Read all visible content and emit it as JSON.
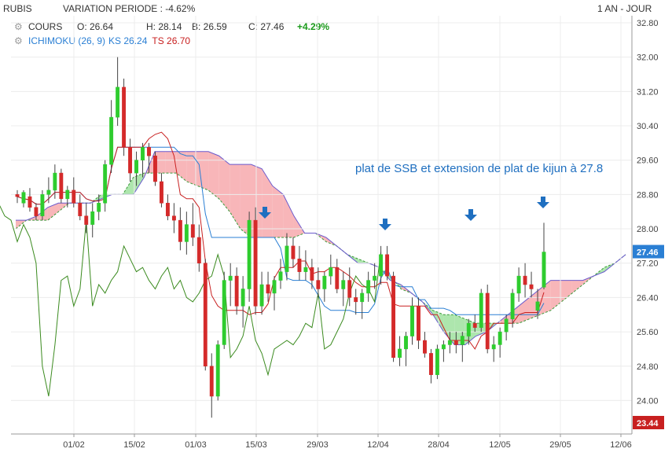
{
  "header": {
    "symbol": "RUBIS",
    "variation": "VARIATION PERIODE : -4.62%",
    "period": "1 AN - JOUR"
  },
  "legend": {
    "cours_label": "COURS",
    "open": "O: 26.64",
    "high": "H: 28.14",
    "low": "B: 26.59",
    "close": "C: 27.46",
    "change": "+4.29%",
    "ichimoku_label": "ICHIMOKU (26, 9)",
    "ks": "KS 26.24",
    "ts": "TS 26.70"
  },
  "annotation": "plat de SSB et extension de plat de kijun à 27.8",
  "badges": {
    "last": "27.46",
    "min": "23.44"
  },
  "colors": {
    "up": "#2ecc2e",
    "down": "#d42a2a",
    "kijun": "#2a7fd4",
    "tenkan": "#c82020",
    "chikou": "#3a8a1e",
    "cloud_bull": "#9fe29f",
    "cloud_bear": "#f7a9ad",
    "badge_last": "#2a7fd4",
    "badge_min": "#c82020",
    "annotation": "#1f6fc0"
  },
  "chart_data": {
    "type": "candlestick",
    "y_ticks": [
      "32.80",
      "32.00",
      "31.20",
      "30.40",
      "29.60",
      "28.80",
      "28.00",
      "27.20",
      "26.40",
      "25.60",
      "24.80",
      "24.00"
    ],
    "ylim": [
      23.44,
      32.8
    ],
    "x_ticks": [
      "01/02",
      "15/02",
      "01/03",
      "15/03",
      "29/03",
      "12/04",
      "28/04",
      "12/05",
      "29/05",
      "12/06"
    ],
    "candles": [
      [
        28.8,
        28.9,
        28.6,
        28.75
      ],
      [
        28.6,
        28.9,
        28.5,
        28.85
      ],
      [
        28.75,
        28.95,
        28.4,
        28.5
      ],
      [
        28.5,
        28.6,
        28.2,
        28.3
      ],
      [
        28.3,
        28.9,
        28.2,
        28.8
      ],
      [
        28.8,
        29.2,
        28.6,
        28.9
      ],
      [
        28.9,
        29.5,
        28.7,
        29.3
      ],
      [
        29.3,
        29.4,
        28.6,
        28.7
      ],
      [
        28.7,
        29.0,
        28.5,
        28.9
      ],
      [
        28.9,
        29.2,
        28.5,
        28.6
      ],
      [
        28.6,
        28.8,
        28.2,
        28.3
      ],
      [
        28.3,
        28.6,
        27.9,
        28.1
      ],
      [
        28.1,
        28.6,
        27.8,
        28.4
      ],
      [
        28.4,
        28.8,
        28.2,
        28.6
      ],
      [
        28.6,
        29.6,
        28.4,
        29.5
      ],
      [
        29.5,
        31.0,
        29.3,
        30.6
      ],
      [
        30.6,
        32.0,
        30.4,
        31.3
      ],
      [
        31.3,
        31.5,
        29.7,
        29.9
      ],
      [
        29.9,
        30.1,
        29.1,
        29.3
      ],
      [
        29.3,
        29.8,
        29.0,
        29.6
      ],
      [
        29.6,
        30.0,
        29.2,
        29.9
      ],
      [
        29.9,
        30.0,
        29.3,
        29.7
      ],
      [
        29.7,
        29.8,
        29.0,
        29.1
      ],
      [
        29.1,
        29.3,
        28.5,
        28.6
      ],
      [
        28.6,
        28.8,
        28.2,
        28.3
      ],
      [
        28.3,
        28.6,
        27.9,
        28.2
      ],
      [
        28.2,
        28.5,
        27.5,
        27.7
      ],
      [
        27.7,
        28.4,
        27.4,
        28.1
      ],
      [
        28.1,
        28.6,
        27.6,
        27.8
      ],
      [
        27.8,
        28.1,
        27.0,
        27.2
      ],
      [
        27.2,
        27.3,
        24.7,
        24.8
      ],
      [
        24.8,
        25.1,
        23.6,
        24.1
      ],
      [
        24.1,
        25.4,
        24.0,
        25.3
      ],
      [
        25.3,
        27.0,
        25.2,
        26.8
      ],
      [
        26.8,
        27.2,
        26.2,
        26.9
      ],
      [
        26.9,
        27.1,
        26.0,
        26.2
      ],
      [
        26.2,
        26.9,
        25.7,
        26.6
      ],
      [
        26.6,
        28.4,
        26.3,
        28.2
      ],
      [
        28.2,
        28.5,
        26.0,
        26.2
      ],
      [
        26.2,
        27.0,
        26.0,
        26.7
      ],
      [
        26.7,
        27.0,
        26.3,
        26.5
      ],
      [
        26.5,
        26.9,
        26.1,
        26.8
      ],
      [
        26.8,
        27.3,
        26.6,
        27.0
      ],
      [
        27.0,
        27.9,
        26.8,
        27.6
      ],
      [
        27.6,
        27.8,
        27.1,
        27.3
      ],
      [
        27.3,
        27.6,
        26.8,
        27.0
      ],
      [
        27.0,
        27.5,
        26.8,
        27.1
      ],
      [
        27.1,
        27.3,
        26.6,
        26.8
      ],
      [
        26.8,
        27.1,
        26.4,
        26.6
      ],
      [
        26.6,
        27.0,
        26.3,
        26.9
      ],
      [
        26.9,
        27.4,
        26.7,
        27.1
      ],
      [
        27.1,
        27.3,
        26.5,
        26.6
      ],
      [
        26.6,
        27.0,
        26.2,
        26.8
      ],
      [
        26.8,
        27.1,
        26.2,
        26.4
      ],
      [
        26.4,
        26.6,
        26.0,
        26.3
      ],
      [
        26.3,
        26.6,
        25.9,
        26.5
      ],
      [
        26.5,
        27.0,
        26.3,
        26.8
      ],
      [
        26.8,
        27.2,
        26.6,
        26.9
      ],
      [
        26.9,
        27.6,
        26.7,
        27.4
      ],
      [
        27.4,
        27.6,
        26.8,
        26.9
      ],
      [
        26.9,
        27.0,
        24.9,
        25.0
      ],
      [
        25.0,
        25.5,
        24.8,
        25.2
      ],
      [
        25.2,
        25.6,
        24.8,
        25.5
      ],
      [
        25.5,
        26.4,
        25.3,
        26.2
      ],
      [
        26.2,
        26.4,
        25.2,
        25.4
      ],
      [
        25.4,
        25.6,
        25.0,
        25.1
      ],
      [
        25.1,
        25.2,
        24.4,
        24.6
      ],
      [
        24.6,
        25.3,
        24.5,
        25.2
      ],
      [
        25.2,
        25.4,
        24.9,
        25.3
      ],
      [
        25.3,
        25.6,
        25.1,
        25.4
      ],
      [
        25.4,
        25.6,
        25.1,
        25.3
      ],
      [
        25.3,
        25.6,
        24.9,
        25.5
      ],
      [
        25.5,
        25.9,
        25.3,
        25.8
      ],
      [
        25.8,
        26.0,
        25.6,
        25.7
      ],
      [
        25.7,
        26.6,
        25.6,
        26.5
      ],
      [
        26.5,
        26.7,
        25.1,
        25.2
      ],
      [
        25.2,
        25.5,
        24.9,
        25.3
      ],
      [
        25.3,
        25.7,
        25.0,
        25.6
      ],
      [
        25.6,
        26.0,
        25.4,
        25.9
      ],
      [
        25.9,
        26.6,
        25.7,
        26.5
      ],
      [
        26.5,
        27.1,
        26.3,
        26.9
      ],
      [
        26.9,
        27.2,
        26.4,
        26.7
      ],
      [
        26.7,
        27.0,
        26.4,
        26.6
      ],
      [
        26.1,
        26.6,
        25.9,
        26.3
      ],
      [
        26.64,
        28.14,
        26.59,
        27.46
      ]
    ],
    "kijun": [
      [
        28.0,
        28.2
      ],
      [
        28.2,
        28.2
      ],
      [
        28.2,
        28.3
      ],
      [
        28.2,
        28.5
      ],
      [
        28.4,
        28.6
      ],
      [
        28.6,
        28.6
      ],
      [
        28.6,
        28.6
      ],
      [
        28.6,
        28.6
      ],
      [
        28.8,
        28.7
      ],
      [
        28.8,
        28.8
      ],
      [
        28.8,
        28.8
      ],
      [
        29.2,
        28.8
      ],
      [
        29.3,
        29.2
      ],
      [
        29.3,
        29.8
      ],
      [
        29.3,
        29.8
      ],
      [
        29.3,
        29.8
      ],
      [
        29.1,
        29.8
      ],
      [
        29.0,
        29.8
      ],
      [
        28.9,
        29.8
      ],
      [
        28.7,
        29.7
      ],
      [
        28.4,
        29.5
      ],
      [
        28.0,
        29.5
      ],
      [
        27.8,
        29.5
      ],
      [
        27.8,
        29.4
      ],
      [
        27.8,
        29.0
      ],
      [
        27.8,
        28.8
      ],
      [
        27.8,
        28.3
      ],
      [
        27.9,
        27.9
      ],
      [
        27.9,
        27.9
      ],
      [
        27.7,
        27.8
      ],
      [
        27.6,
        27.6
      ],
      [
        27.4,
        27.4
      ],
      [
        27.3,
        27.2
      ],
      [
        27.2,
        27.2
      ],
      [
        27.1,
        27.1
      ],
      [
        26.9,
        26.8
      ],
      [
        26.6,
        26.7
      ],
      [
        26.5,
        26.5
      ],
      [
        26.3,
        26.3
      ],
      [
        26.1,
        26.0
      ],
      [
        26.0,
        25.6
      ],
      [
        26.0,
        25.3
      ],
      [
        25.9,
        25.3
      ],
      [
        25.8,
        25.5
      ],
      [
        25.8,
        25.6
      ],
      [
        25.8,
        25.8
      ],
      [
        25.8,
        26.0
      ],
      [
        25.8,
        26.2
      ],
      [
        25.9,
        26.4
      ],
      [
        26.0,
        26.6
      ],
      [
        26.1,
        26.8
      ],
      [
        26.3,
        26.8
      ],
      [
        26.5,
        26.8
      ],
      [
        26.7,
        26.8
      ],
      [
        26.9,
        26.9
      ],
      [
        27.1,
        27.0
      ],
      [
        27.2,
        27.2
      ],
      [
        27.4,
        27.4
      ]
    ]
  }
}
